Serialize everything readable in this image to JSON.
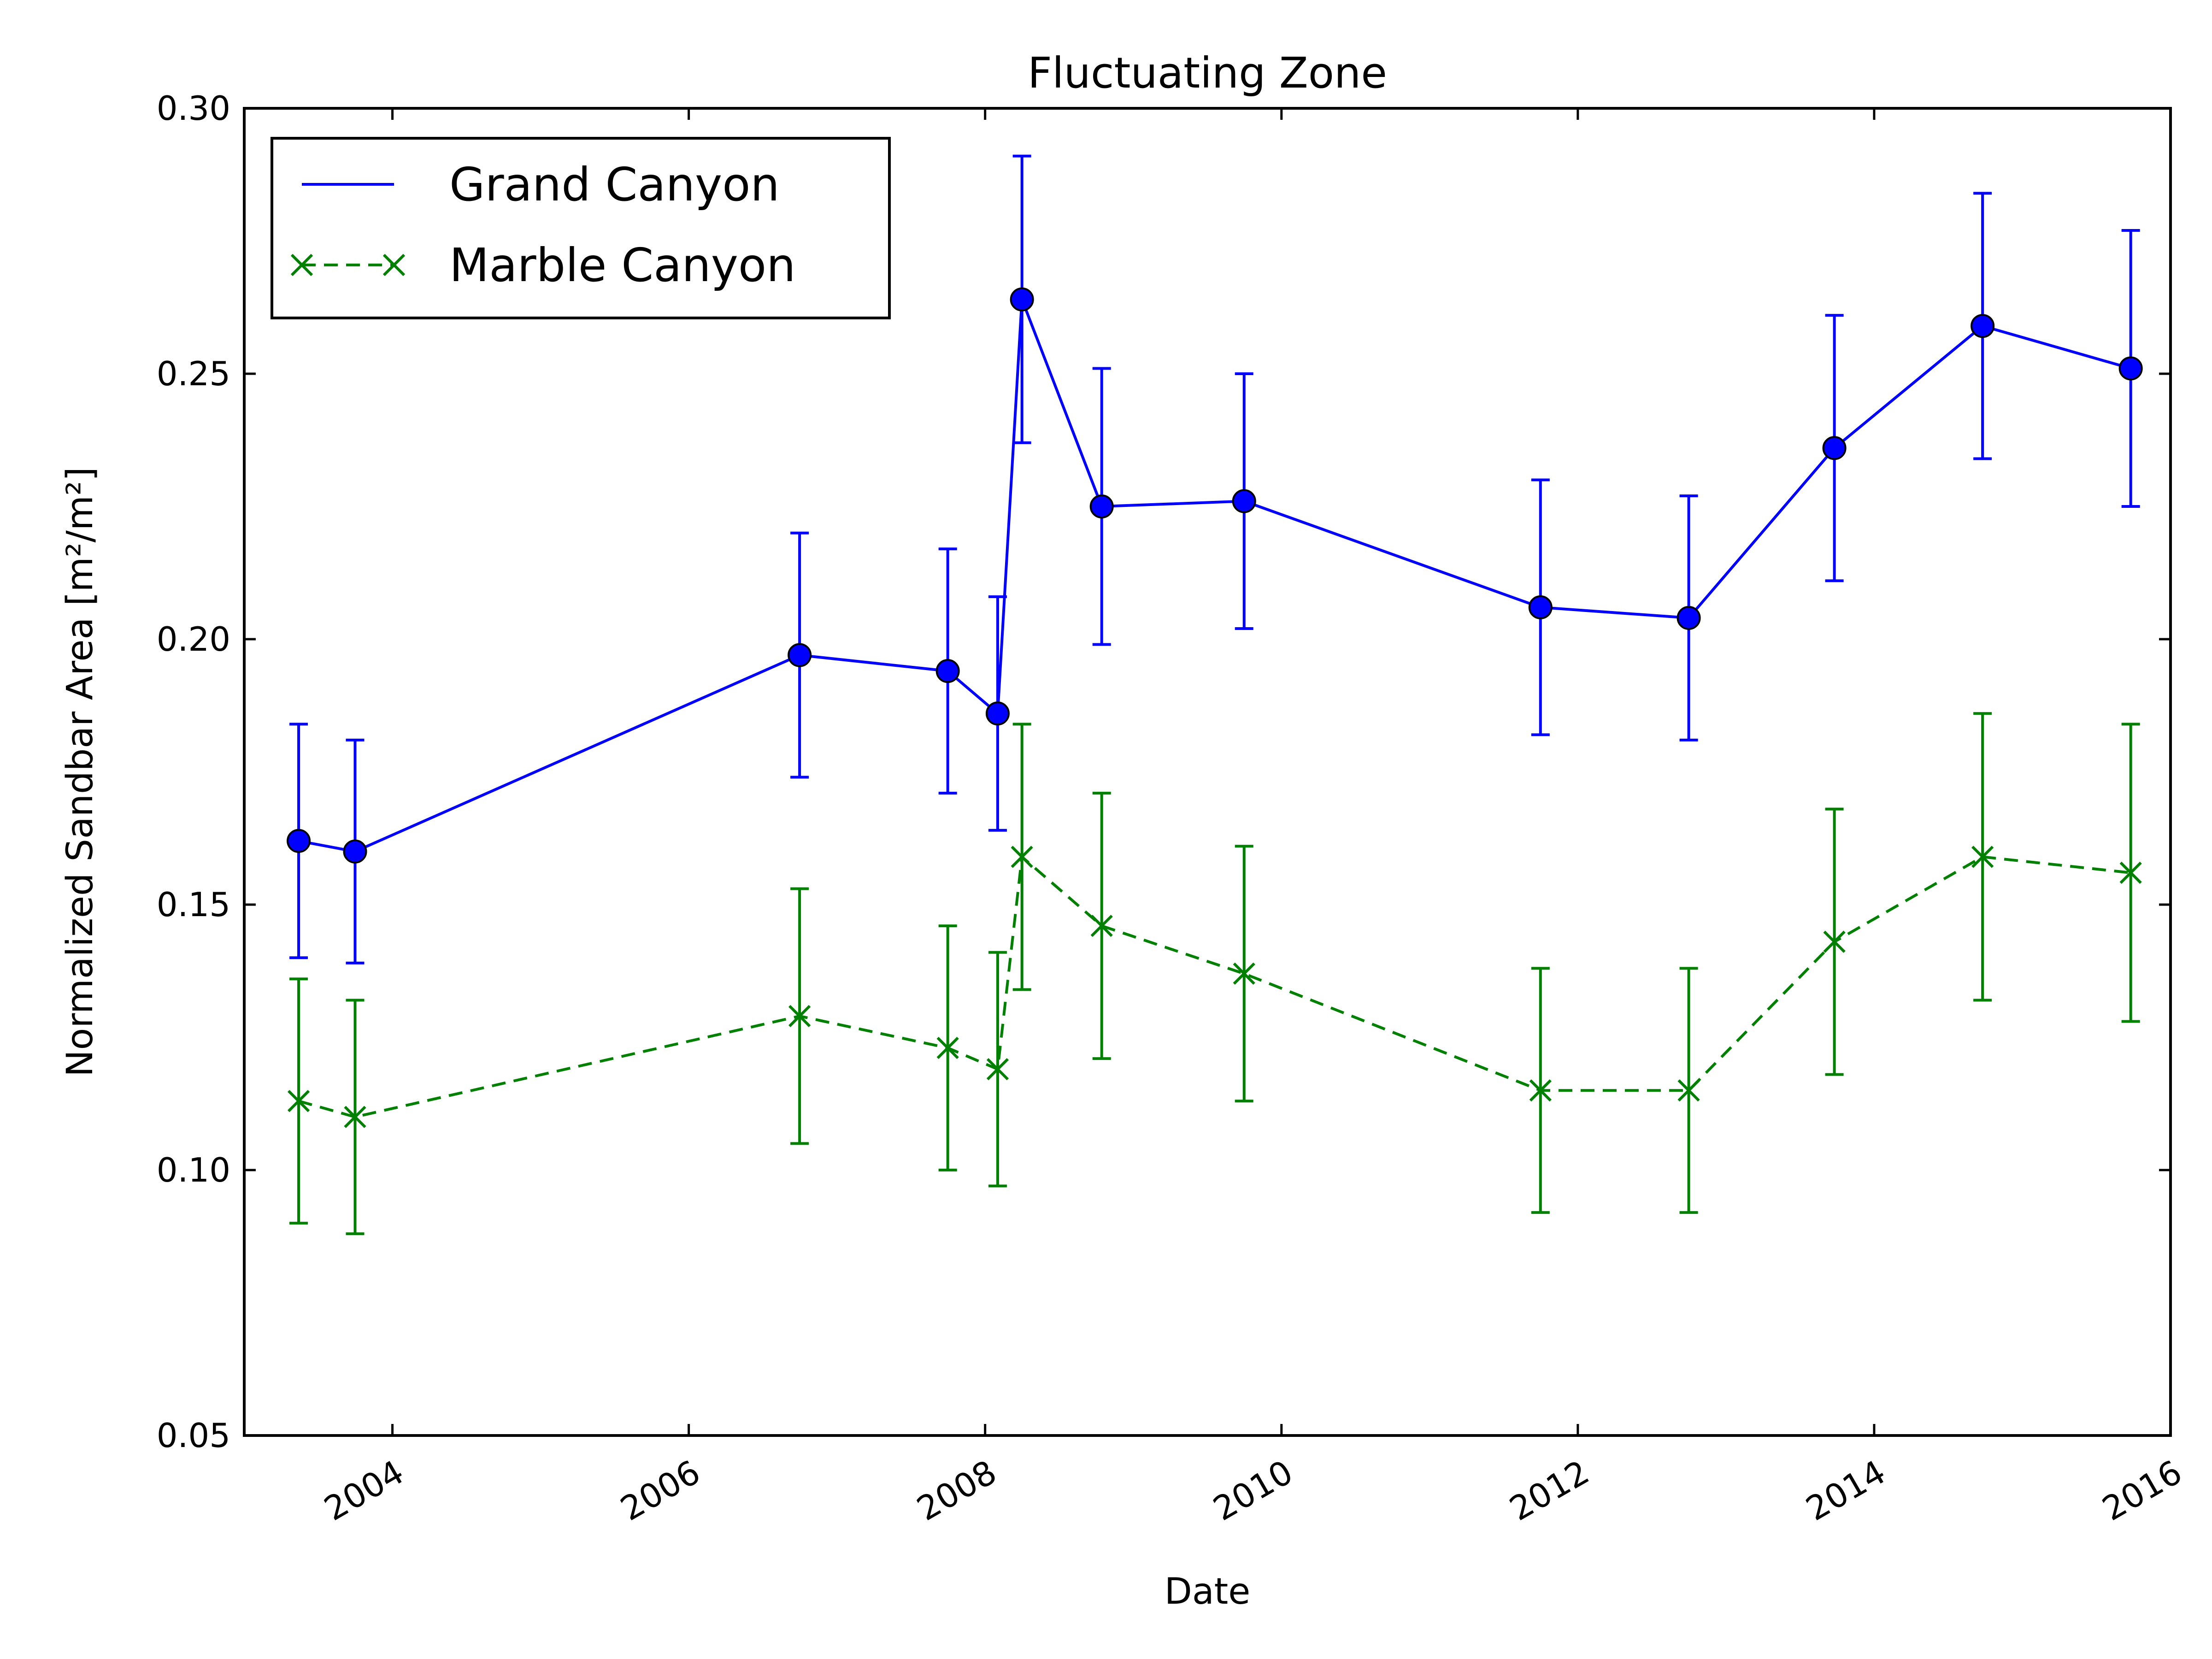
{
  "chart_data": {
    "type": "line",
    "title": "Fluctuating Zone",
    "xlabel": "Date",
    "ylabel": "Normalized Sandbar Area [m²/m²]",
    "xlim": [
      "2003-01-01",
      "2016-01-01"
    ],
    "ylim": [
      0.05,
      0.3
    ],
    "x_ticks": [
      "2004",
      "2006",
      "2008",
      "2010",
      "2012",
      "2014",
      "2016"
    ],
    "y_ticks": [
      "0.05",
      "0.10",
      "0.15",
      "0.20",
      "0.25",
      "0.30"
    ],
    "grid": false,
    "legend_position": "top-left",
    "series": [
      {
        "name": "Grand Canyon",
        "color": "#0000ff",
        "line_style": "solid",
        "marker": "circle",
        "x": [
          "2003-05-15",
          "2003-10-01",
          "2006-10-01",
          "2007-10-01",
          "2008-02-01",
          "2008-04-01",
          "2008-10-15",
          "2009-10-01",
          "2011-10-01",
          "2012-10-01",
          "2013-09-25",
          "2014-09-25",
          "2015-09-25"
        ],
        "y": [
          0.162,
          0.16,
          0.197,
          0.194,
          0.186,
          0.264,
          0.225,
          0.226,
          0.206,
          0.204,
          0.236,
          0.259,
          0.251
        ],
        "err": [
          0.022,
          0.021,
          0.023,
          0.023,
          0.022,
          0.027,
          0.026,
          0.024,
          0.024,
          0.023,
          0.025,
          0.025,
          0.026
        ]
      },
      {
        "name": "Marble Canyon",
        "color": "#008000",
        "line_style": "dashed",
        "marker": "x",
        "x": [
          "2003-05-15",
          "2003-10-01",
          "2006-10-01",
          "2007-10-01",
          "2008-02-01",
          "2008-04-01",
          "2008-10-15",
          "2009-10-01",
          "2011-10-01",
          "2012-10-01",
          "2013-09-25",
          "2014-09-25",
          "2015-09-25"
        ],
        "y": [
          0.113,
          0.11,
          0.129,
          0.123,
          0.119,
          0.159,
          0.146,
          0.137,
          0.115,
          0.115,
          0.143,
          0.159,
          0.156
        ],
        "err": [
          0.023,
          0.022,
          0.024,
          0.023,
          0.022,
          0.025,
          0.025,
          0.024,
          0.023,
          0.023,
          0.025,
          0.027,
          0.028
        ]
      }
    ]
  }
}
